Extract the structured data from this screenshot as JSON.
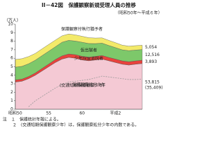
{
  "chart_data": {
    "type": "stacked-area",
    "title": "II－42図　保護観察新規受理人員の推移",
    "subtitle": "（昭和50年～平成６年）",
    "y_label": "（万人）",
    "categories": [
      "昭和50",
      null,
      null,
      null,
      null,
      "55",
      null,
      null,
      null,
      null,
      "60",
      null,
      null,
      null,
      null,
      "平成2",
      null,
      null,
      null,
      null
    ],
    "ylim": [
      0,
      10
    ],
    "yticks": [
      0,
      1,
      2,
      3,
      4,
      5,
      6,
      7,
      8,
      9,
      10
    ],
    "series": [
      {
        "name": "保護観察処分少年",
        "color": "#f4c9d4",
        "values": [
          3.2,
          3.3,
          3.6,
          4.0,
          4.5,
          5.0,
          5.5,
          5.9,
          6.1,
          6.0,
          5.8,
          5.7,
          5.8,
          5.9,
          5.7,
          5.5,
          5.3,
          5.2,
          5.3,
          5.3815
        ],
        "value_labels": [
          null,
          null,
          null,
          null,
          null,
          null,
          null,
          null,
          null,
          null,
          null,
          null,
          null,
          null,
          null,
          null,
          null,
          null,
          null,
          "53,815"
        ]
      },
      {
        "name": "少年院仮退院者",
        "color": "#e8423c",
        "values": [
          0.25,
          0.25,
          0.25,
          0.27,
          0.3,
          0.32,
          0.35,
          0.38,
          0.4,
          0.42,
          0.43,
          0.43,
          0.42,
          0.42,
          0.4,
          0.4,
          0.39,
          0.39,
          0.39,
          0.3893
        ],
        "value_labels": [
          null,
          null,
          null,
          null,
          null,
          null,
          null,
          null,
          null,
          null,
          null,
          null,
          null,
          null,
          null,
          null,
          null,
          null,
          null,
          "3,893"
        ]
      },
      {
        "name": "仮出獄者",
        "color": "#7dc86a",
        "values": [
          1.5,
          1.5,
          1.5,
          1.5,
          1.5,
          1.5,
          1.5,
          1.6,
          1.6,
          1.6,
          1.65,
          1.6,
          1.5,
          1.45,
          1.4,
          1.35,
          1.3,
          1.3,
          1.27,
          1.2516
        ],
        "value_labels": [
          null,
          null,
          null,
          null,
          null,
          null,
          null,
          null,
          null,
          null,
          null,
          null,
          null,
          null,
          null,
          null,
          null,
          null,
          null,
          "12,516"
        ]
      },
      {
        "name": "保護観察付執行猶予者",
        "color": "#f3ea6a",
        "values": [
          0.9,
          0.9,
          0.85,
          0.8,
          0.8,
          0.8,
          0.78,
          0.75,
          0.75,
          0.72,
          0.7,
          0.68,
          0.65,
          0.62,
          0.6,
          0.58,
          0.55,
          0.53,
          0.52,
          0.5054
        ],
        "value_labels": [
          null,
          null,
          null,
          null,
          null,
          null,
          null,
          null,
          null,
          null,
          null,
          null,
          null,
          null,
          null,
          null,
          null,
          null,
          null,
          "5,054"
        ]
      }
    ],
    "subset_line": {
      "name": "(交通短期保護観察少年)",
      "color": "#999",
      "dashed": true,
      "values": [
        null,
        null,
        0.3,
        1.0,
        1.5,
        2.0,
        2.5,
        2.9,
        3.2,
        3.3,
        3.4,
        3.5,
        3.7,
        3.9,
        3.8,
        3.7,
        3.6,
        3.5,
        3.5,
        3.5409
      ],
      "value_labels": [
        null,
        null,
        null,
        null,
        null,
        null,
        null,
        null,
        null,
        null,
        null,
        null,
        null,
        null,
        null,
        null,
        null,
        null,
        null,
        "(35,409)"
      ]
    },
    "notes": [
      "注　１　保護統計年報による。",
      "２　(交通短期保護観察少年）は，保護観察処分少年の内数である。"
    ]
  }
}
